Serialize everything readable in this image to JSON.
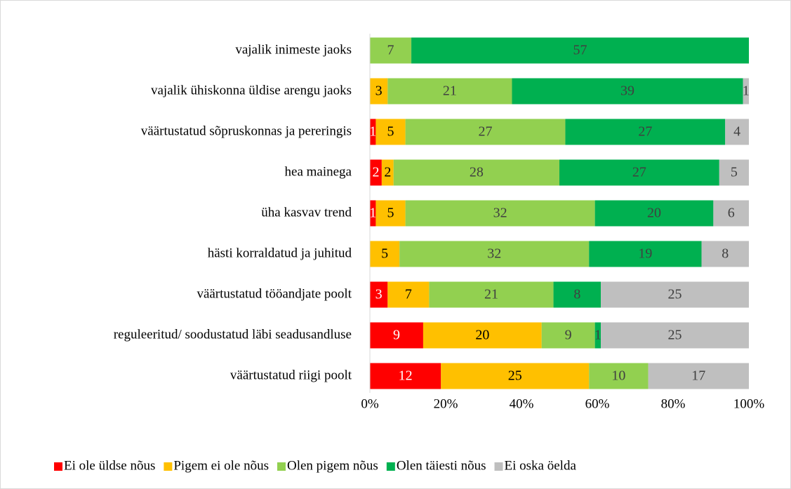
{
  "chart_data": {
    "type": "bar",
    "orientation": "horizontal",
    "stacked": "percent",
    "categories": [
      "vajalik inimeste jaoks",
      "vajalik ühiskonna üldise arengu jaoks",
      "väärtustatud sõpruskonnas ja pereringis",
      "hea mainega",
      "üha kasvav trend",
      "hästi korraldatud ja juhitud",
      "väärtustatud tööandjate poolt",
      "reguleeritud/ soodustatud läbi seadusandluse",
      "väärtustatud riigi poolt"
    ],
    "series": [
      {
        "name": "Ei ole üldse nõus",
        "color": "#ff0000",
        "label_color": "#ffffff",
        "values": [
          null,
          null,
          1,
          2,
          1,
          null,
          3,
          9,
          12
        ]
      },
      {
        "name": "Pigem ei ole nõus",
        "color": "#ffc000",
        "label_color": "#000000",
        "values": [
          null,
          3,
          5,
          2,
          5,
          5,
          7,
          20,
          25
        ]
      },
      {
        "name": "Olen pigem nõus",
        "color": "#92d050",
        "label_color": "#404040",
        "values": [
          7,
          21,
          27,
          28,
          32,
          32,
          21,
          9,
          10
        ]
      },
      {
        "name": "Olen täiesti nõus",
        "color": "#00b050",
        "label_color": "#404040",
        "values": [
          57,
          39,
          27,
          27,
          20,
          19,
          8,
          1,
          null
        ]
      },
      {
        "name": "Ei oska öelda",
        "color": "#bfbfbf",
        "label_color": "#404040",
        "values": [
          null,
          1,
          4,
          5,
          6,
          8,
          25,
          25,
          17
        ]
      }
    ],
    "xlim": [
      0,
      100
    ],
    "xticks": [
      {
        "value": 0,
        "label": "0%"
      },
      {
        "value": 20,
        "label": "20%"
      },
      {
        "value": 40,
        "label": "40%"
      },
      {
        "value": 60,
        "label": "60%"
      },
      {
        "value": 80,
        "label": "80%"
      },
      {
        "value": 100,
        "label": "100%"
      }
    ],
    "grid": false,
    "legend": "bottom"
  }
}
